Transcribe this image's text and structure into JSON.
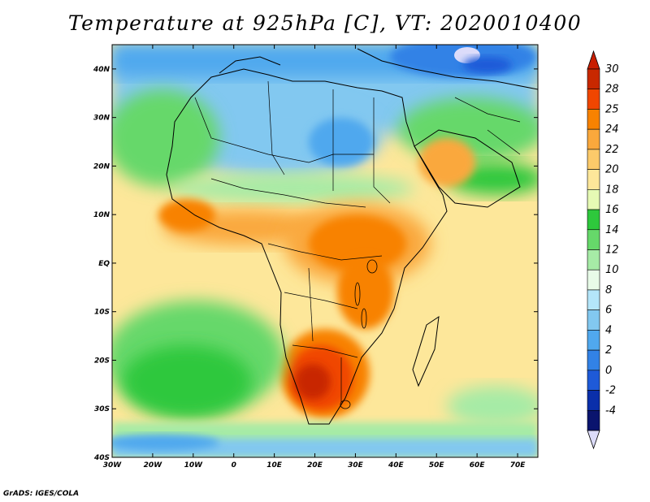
{
  "title": "Temperature at 925hPa [C], VT: 2020010400",
  "credit": "GrADS: IGES/COLA",
  "map": {
    "x_ticks": [
      "30W",
      "20W",
      "10W",
      "0",
      "10E",
      "20E",
      "30E",
      "40E",
      "50E",
      "60E",
      "70E"
    ],
    "y_ticks": [
      "40N",
      "30N",
      "20N",
      "10N",
      "EQ",
      "10S",
      "20S",
      "30S",
      "40S"
    ],
    "lon_range": [
      -30,
      75
    ],
    "lat_range": [
      -40,
      45
    ]
  },
  "colorbar": {
    "labels": [
      "30",
      "28",
      "25",
      "24",
      "22",
      "20",
      "18",
      "16",
      "14",
      "12",
      "10",
      "8",
      "6",
      "4",
      "2",
      "0",
      "-2",
      "-4"
    ],
    "colors": [
      "#c82800",
      "#f04600",
      "#f88200",
      "#faa83c",
      "#fcca6a",
      "#fde79a",
      "#e6fab4",
      "#2ec83c",
      "#66d86a",
      "#a6eba6",
      "#e8fbe8",
      "#b4e6fa",
      "#82c8f0",
      "#50a8ee",
      "#3282e6",
      "#1e5ad8",
      "#0a2faa",
      "#0a146e"
    ],
    "top_arrow_color": "#c81e00",
    "bottom_arrow_color": "#dcdcfa"
  }
}
